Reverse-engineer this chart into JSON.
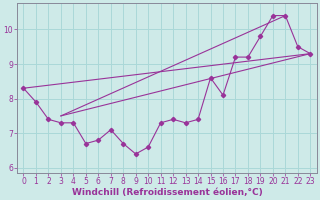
{
  "title": "",
  "xlabel": "Windchill (Refroidissement éolien,°C)",
  "ylabel": "",
  "bg_color": "#ceeae8",
  "line_color": "#993399",
  "grid_color": "#aad8d8",
  "x_data": [
    0,
    1,
    2,
    3,
    4,
    5,
    6,
    7,
    8,
    9,
    10,
    11,
    12,
    13,
    14,
    15,
    16,
    17,
    18,
    19,
    20,
    21,
    22,
    23
  ],
  "y_data": [
    8.3,
    7.9,
    7.4,
    7.3,
    7.3,
    6.7,
    6.8,
    7.1,
    6.7,
    6.4,
    6.6,
    7.3,
    7.4,
    7.3,
    7.4,
    8.6,
    8.1,
    9.2,
    9.2,
    9.8,
    10.4,
    10.4,
    9.5,
    9.3
  ],
  "line1_x": [
    3,
    21
  ],
  "line1_y": [
    7.5,
    10.4
  ],
  "line2_x": [
    3,
    23
  ],
  "line2_y": [
    7.5,
    9.3
  ],
  "line3_x": [
    0,
    23
  ],
  "line3_y": [
    8.3,
    9.3
  ],
  "xlim": [
    -0.5,
    23.5
  ],
  "ylim": [
    5.85,
    10.75
  ],
  "yticks": [
    6,
    7,
    8,
    9,
    10
  ],
  "xticks": [
    0,
    1,
    2,
    3,
    4,
    5,
    6,
    7,
    8,
    9,
    10,
    11,
    12,
    13,
    14,
    15,
    16,
    17,
    18,
    19,
    20,
    21,
    22,
    23
  ],
  "tick_label_size": 5.5,
  "xlabel_size": 6.5
}
